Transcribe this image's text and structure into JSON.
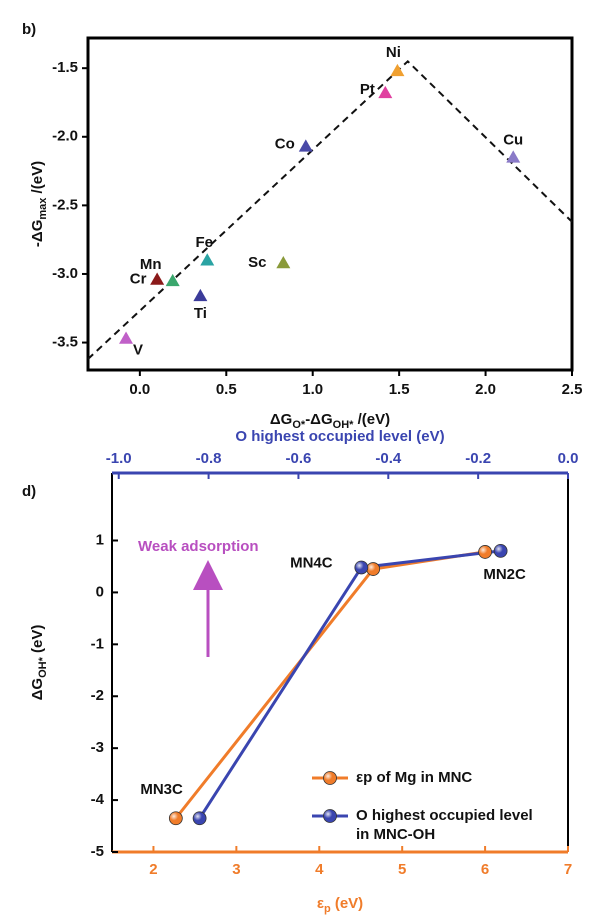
{
  "chart_data": [
    {
      "type": "scatter",
      "panel_label": "b)",
      "x_label": [
        {
          "text": "ΔG"
        },
        {
          "text": "O*",
          "sub": true
        },
        {
          "text": "-ΔG"
        },
        {
          "text": "OH*",
          "sub": true
        },
        {
          "text": " /(eV)"
        }
      ],
      "y_label": [
        {
          "text": "-ΔG"
        },
        {
          "text": "max",
          "sub": true
        },
        {
          "text": " /(eV)"
        }
      ],
      "xlim": [
        -0.3,
        2.5
      ],
      "xticks": [
        {
          "value": 0,
          "label": "0.0"
        },
        0.5,
        {
          "value": 1,
          "label": "1.0"
        },
        1.5,
        {
          "value": 2,
          "label": "2.0"
        },
        2.5
      ],
      "ylim": [
        -3.7,
        -1.28
      ],
      "yticks": [
        -1.5,
        {
          "value": -2,
          "label": "-2.0"
        },
        -2.5,
        {
          "value": -3,
          "label": "-3.0"
        },
        -3.5
      ],
      "marker": "triangle",
      "labels": [
        "V",
        "Cr",
        "Mn",
        "Fe",
        "Ti",
        "Sc",
        "Co",
        "Pt",
        "Ni",
        "Cu"
      ],
      "x": [
        -0.08,
        0.1,
        0.19,
        0.39,
        0.35,
        0.83,
        0.96,
        1.42,
        1.49,
        2.16
      ],
      "y": [
        -3.47,
        -3.04,
        -3.05,
        -2.9,
        -3.16,
        -2.92,
        -2.07,
        -1.68,
        -1.52,
        -2.15
      ],
      "colors": [
        "#c060c8",
        "#8b1a1a",
        "#3aa76d",
        "#2aa3a3",
        "#3b3b9a",
        "#8a9a3a",
        "#4a4aa8",
        "#e040a0",
        "#f0a030",
        "#8a7ac8"
      ],
      "guide_line": {
        "x": [
          -0.3,
          1.55,
          2.5
        ],
        "y": [
          -3.62,
          -1.45,
          -2.62
        ],
        "color": "#111",
        "style": "dashed"
      }
    },
    {
      "type": "line",
      "panel_label": "d)",
      "x_label": [
        {
          "text": "ε"
        },
        {
          "text": "p",
          "sub": true
        },
        {
          "text": " (eV)"
        }
      ],
      "x_color": "#f07c2a",
      "x2_label": "O highest occupied level (eV)",
      "x2_color": "#3a45b0",
      "y_label": [
        {
          "text": "ΔG"
        },
        {
          "text": "OH*",
          "sub": true
        },
        {
          "text": " (eV)"
        }
      ],
      "xlim": [
        1.5,
        7
      ],
      "xticks": [
        2,
        3,
        4,
        5,
        6,
        7
      ],
      "x2lim": [
        -1.015,
        0
      ],
      "x2ticks": [
        {
          "value": -1,
          "label": "-1.0"
        },
        -0.8,
        -0.6,
        -0.4,
        -0.2,
        {
          "value": 0,
          "label": "0.0"
        }
      ],
      "ylim": [
        -5,
        2.3
      ],
      "yticks": [
        1,
        0,
        -1,
        -2,
        -3,
        -4,
        -5
      ],
      "series": [
        {
          "name": "εp of Mg in MNC",
          "color": "#f07c2a",
          "x": [
            2.27,
            4.65,
            6.0
          ],
          "values": [
            -4.35,
            0.45,
            0.78
          ]
        },
        {
          "name": "O highest occupied level in MNC-OH",
          "color": "#3a45b0",
          "axis": "x2",
          "x": [
            -0.82,
            -0.46,
            -0.15
          ],
          "values": [
            -4.35,
            0.48,
            0.8
          ]
        }
      ],
      "point_labels": [
        "MN3C",
        "MN4C",
        "MN2C"
      ],
      "annotation": {
        "text": "Weak adsorption",
        "color": "#b84fc0"
      },
      "legend": "lower right"
    }
  ]
}
